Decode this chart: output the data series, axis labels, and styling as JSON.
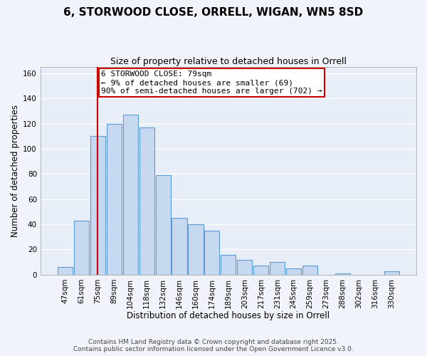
{
  "title": "6, STORWOOD CLOSE, ORRELL, WIGAN, WN5 8SD",
  "subtitle": "Size of property relative to detached houses in Orrell",
  "xlabel": "Distribution of detached houses by size in Orrell",
  "ylabel": "Number of detached properties",
  "categories": [
    "47sqm",
    "61sqm",
    "75sqm",
    "89sqm",
    "104sqm",
    "118sqm",
    "132sqm",
    "146sqm",
    "160sqm",
    "174sqm",
    "189sqm",
    "203sqm",
    "217sqm",
    "231sqm",
    "245sqm",
    "259sqm",
    "273sqm",
    "288sqm",
    "302sqm",
    "316sqm",
    "330sqm"
  ],
  "values": [
    6,
    43,
    110,
    120,
    127,
    117,
    79,
    45,
    40,
    35,
    16,
    12,
    7,
    10,
    5,
    7,
    0,
    1,
    0,
    0,
    3
  ],
  "bar_color": "#c6d9f0",
  "bar_edge_color": "#5b9bd5",
  "vline_x_idx": 2,
  "vline_color": "#cc0000",
  "annotation_line1": "6 STORWOOD CLOSE: 79sqm",
  "annotation_line2": "← 9% of detached houses are smaller (69)",
  "annotation_line3": "90% of semi-detached houses are larger (702) →",
  "annotation_box_color": "#ffffff",
  "annotation_box_edge": "#cc0000",
  "ylim": [
    0,
    165
  ],
  "yticks": [
    0,
    20,
    40,
    60,
    80,
    100,
    120,
    140,
    160
  ],
  "footer_line1": "Contains HM Land Registry data © Crown copyright and database right 2025.",
  "footer_line2": "Contains public sector information licensed under the Open Government Licence v3.0.",
  "background_color": "#f0f4fa",
  "plot_bg_color": "#e8eef8",
  "grid_color": "#ffffff",
  "title_fontsize": 11,
  "subtitle_fontsize": 9,
  "label_fontsize": 8.5,
  "tick_fontsize": 7.5,
  "annotation_fontsize": 8,
  "footer_fontsize": 6.5
}
